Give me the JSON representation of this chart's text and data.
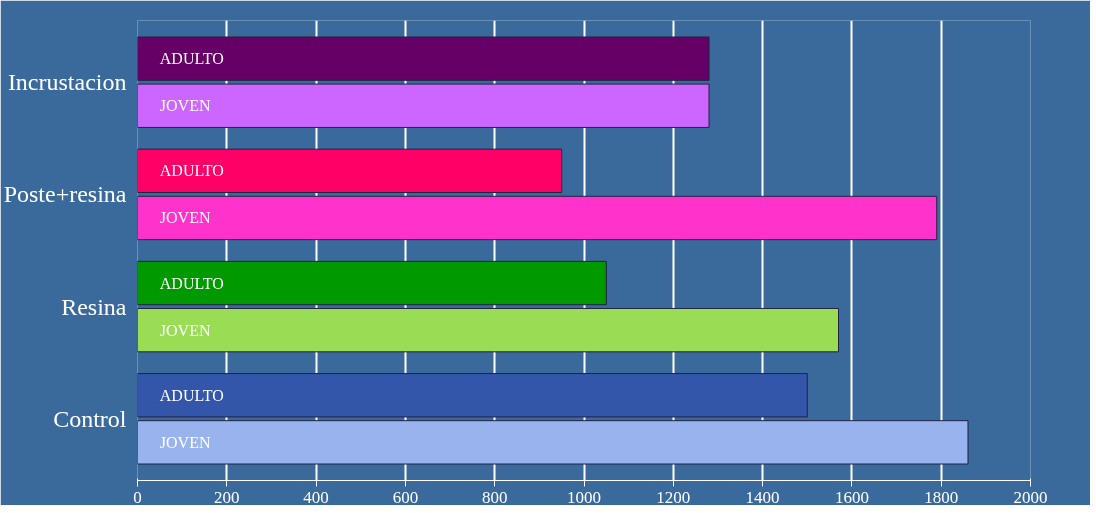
{
  "chart_data": {
    "type": "bar",
    "orientation": "horizontal",
    "categories": [
      "Incrustacion",
      "Poste+resina",
      "Resina",
      "Control"
    ],
    "series": [
      {
        "name": "ADULTO",
        "colors": [
          "#660066",
          "#ff0066",
          "#009900",
          "#3355aa"
        ],
        "values": [
          1280,
          950,
          1050,
          1500
        ]
      },
      {
        "name": "JOVEN",
        "colors": [
          "#cc66ff",
          "#ff33cc",
          "#99dd55",
          "#99b3ee"
        ],
        "values": [
          1280,
          1790,
          1570,
          1860
        ]
      }
    ],
    "xlim": [
      0,
      2000
    ],
    "xticks": [
      0,
      200,
      400,
      600,
      800,
      1000,
      1200,
      1400,
      1600,
      1800,
      2000
    ],
    "grid": "x"
  }
}
